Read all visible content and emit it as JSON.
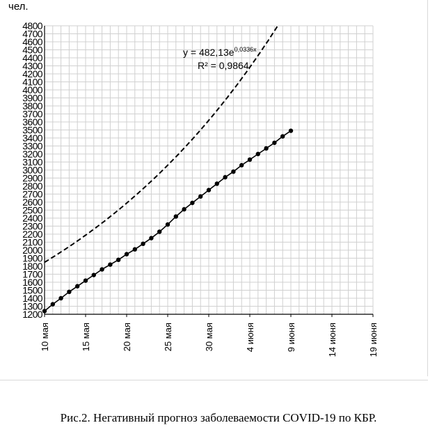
{
  "chart_data": {
    "type": "line",
    "ylabel": "чел.",
    "ylim": [
      1200,
      4800
    ],
    "yticks": [
      1200,
      1300,
      1400,
      1500,
      1600,
      1700,
      1800,
      1900,
      2000,
      2100,
      2200,
      2300,
      2400,
      2500,
      2600,
      2700,
      2800,
      2900,
      3000,
      3100,
      3200,
      3300,
      3400,
      3500,
      3600,
      3700,
      3800,
      3900,
      4000,
      4100,
      4200,
      4300,
      4400,
      4500,
      4600,
      4700,
      4800
    ],
    "xlim": [
      0,
      40
    ],
    "xticks": [
      {
        "x": 0,
        "label": "10 мая"
      },
      {
        "x": 5,
        "label": "15 мая"
      },
      {
        "x": 10,
        "label": "20 мая"
      },
      {
        "x": 15,
        "label": "25 мая"
      },
      {
        "x": 20,
        "label": "30 мая"
      },
      {
        "x": 25,
        "label": "4 июня"
      },
      {
        "x": 30,
        "label": "9 июня"
      },
      {
        "x": 35,
        "label": "14 июня"
      },
      {
        "x": 40,
        "label": "19 июня"
      }
    ],
    "grid": true,
    "series": [
      {
        "kind": "actual",
        "x": [
          0,
          1,
          2,
          3,
          4,
          5,
          6,
          7,
          8,
          9,
          10,
          11,
          12,
          13,
          14,
          15,
          16,
          17,
          18,
          19,
          20,
          21,
          22,
          23,
          24,
          25,
          26,
          27,
          28,
          29,
          30
        ],
        "y": [
          1240,
          1325,
          1400,
          1480,
          1550,
          1620,
          1690,
          1760,
          1820,
          1880,
          1950,
          2010,
          2080,
          2150,
          2230,
          2320,
          2420,
          2510,
          2590,
          2670,
          2750,
          2830,
          2910,
          2980,
          3060,
          3130,
          3200,
          3270,
          3340,
          3420,
          3490
        ]
      },
      {
        "kind": "trend",
        "dashed": true,
        "equation": "482,13e^(0,0336x)",
        "x_start": 0,
        "x_end": 37.5,
        "day_offset": 40
      }
    ],
    "annotations": {
      "equation_prefix": "y = 482,13e",
      "equation_exponent": "0,0336x",
      "r2": "R² = 0,9864"
    }
  },
  "caption": "Рис.2. Негативный прогноз заболеваемости COVID-19 по КБР."
}
